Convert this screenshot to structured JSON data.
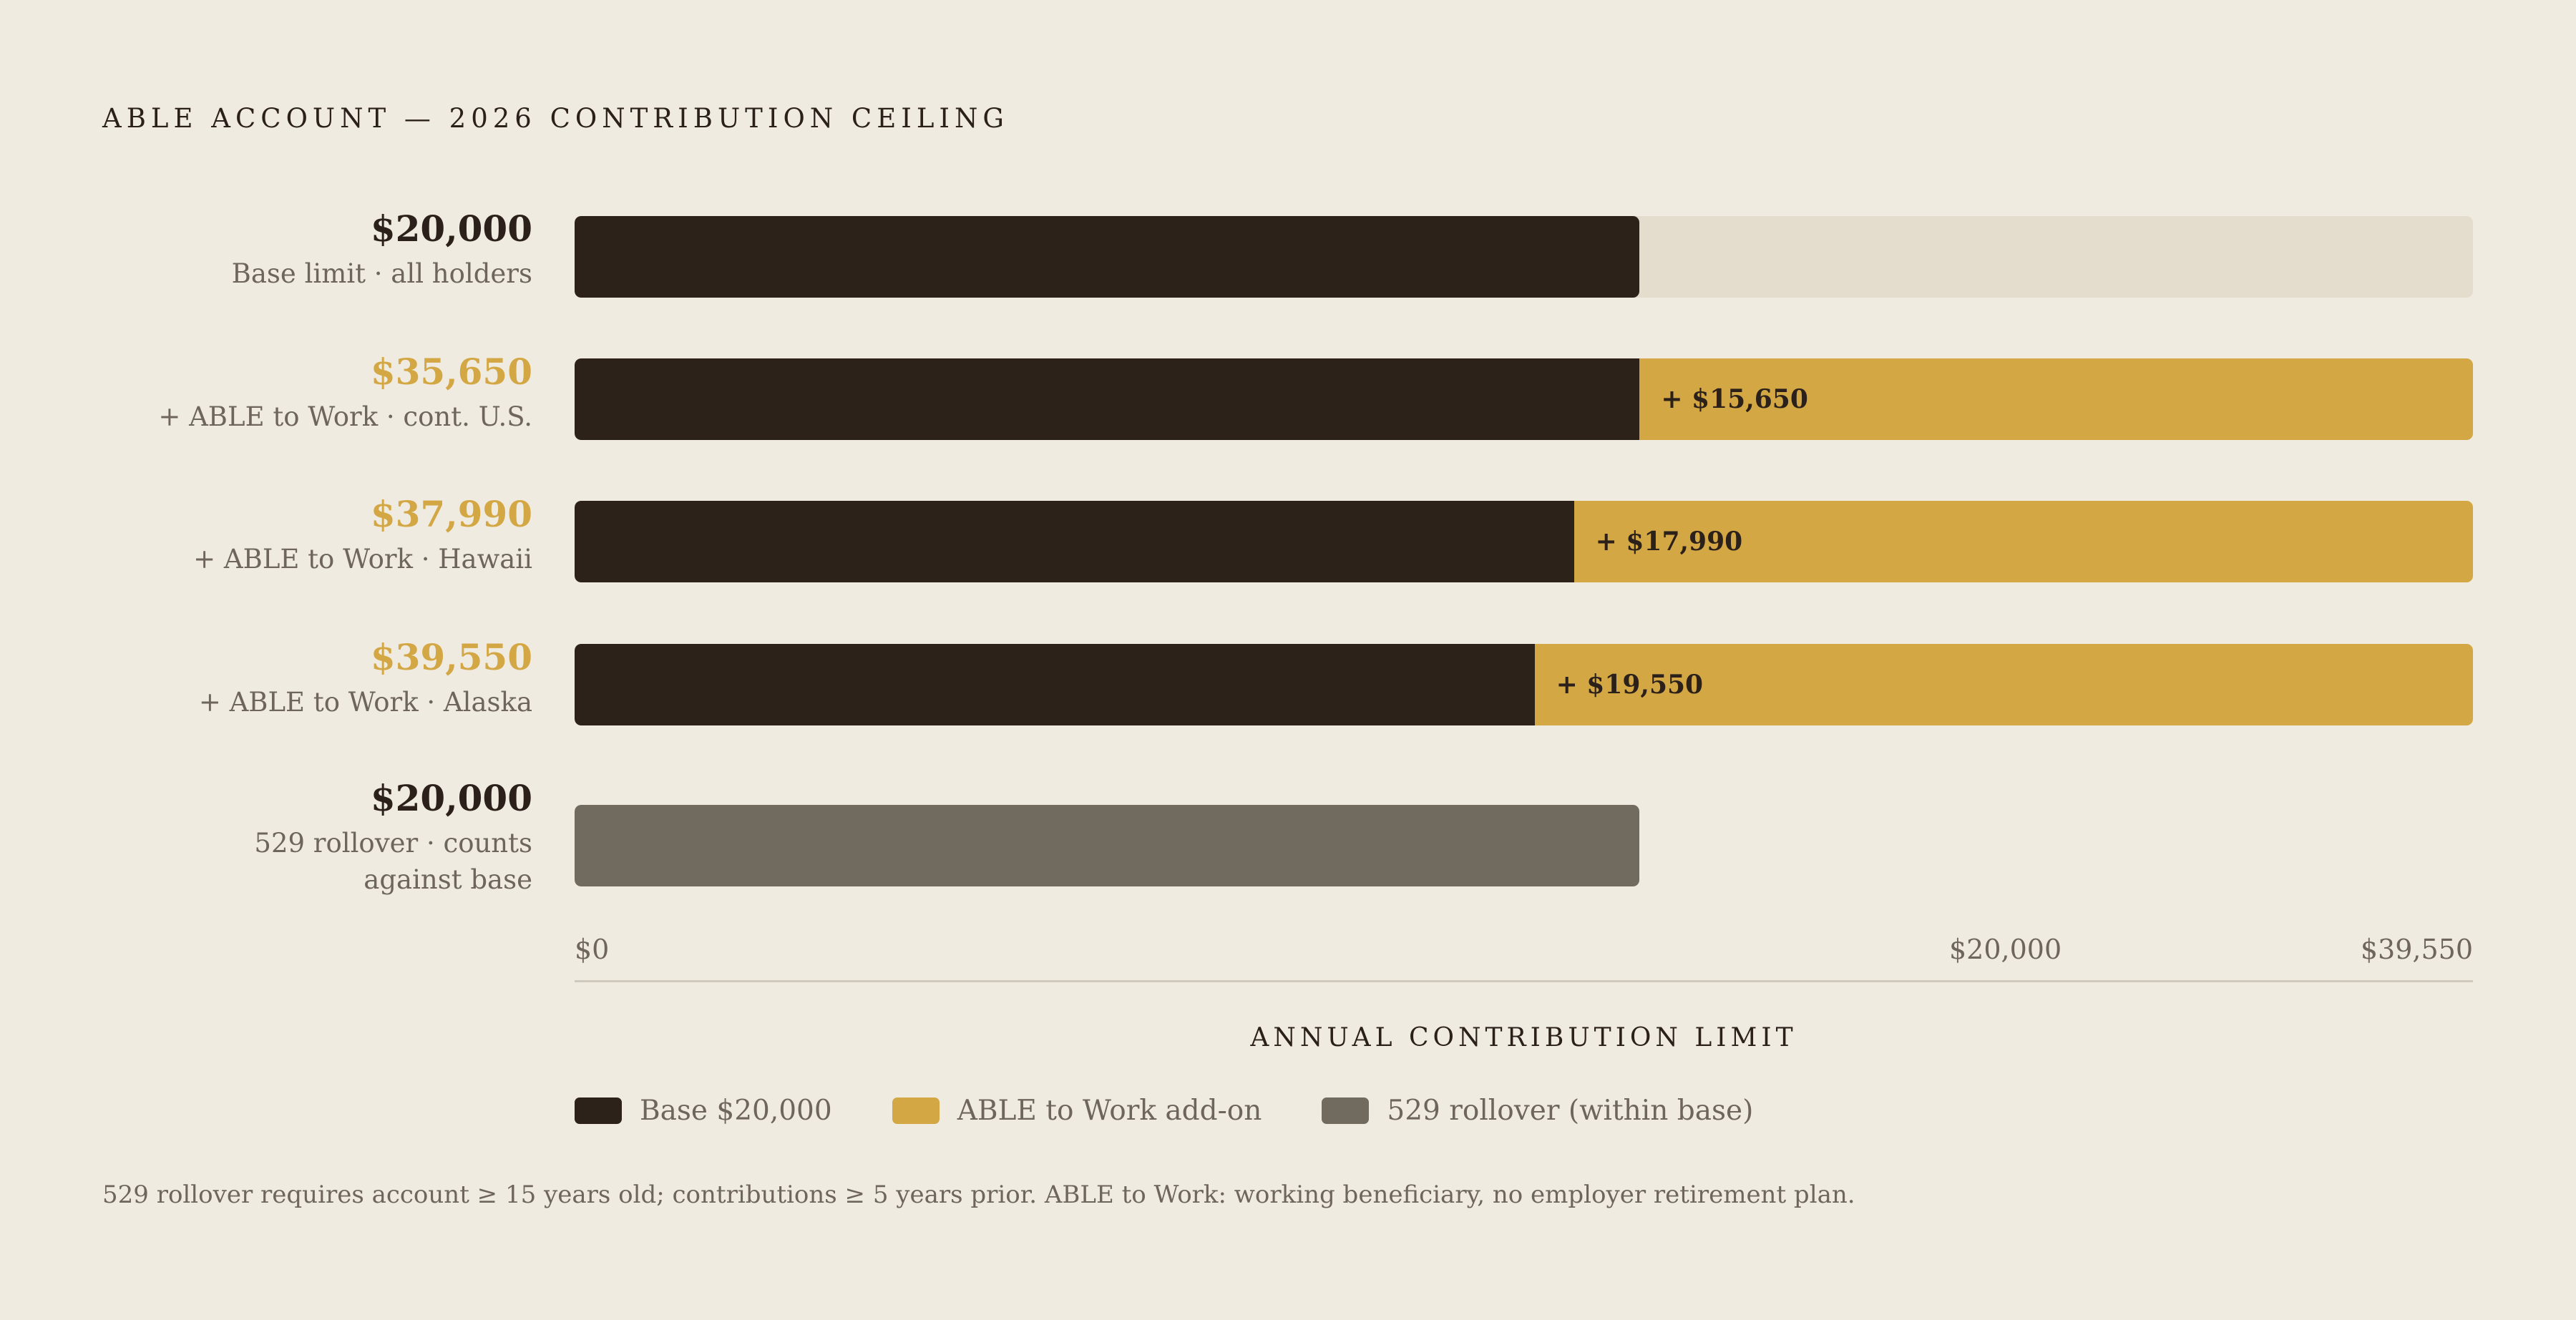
{
  "title": "ABLE ACCOUNT — 2026 CONTRIBUTION CEILING",
  "colors": {
    "base": "#2c221a",
    "add_on": "#d4a745",
    "rollover": "#716a5f",
    "track": "#e4dccd",
    "accent_text": "#d4a745",
    "dark_text": "#2b211a"
  },
  "chart_data": {
    "type": "bar",
    "orientation": "horizontal",
    "stacked": true,
    "xlabel": "ANNUAL CONTRIBUTION LIMIT",
    "xlim": [
      0,
      39550
    ],
    "x_ticks": [
      "$0",
      "$20,000",
      "$39,550"
    ],
    "rows": [
      {
        "total_label": "$20,000",
        "sub_label": "Base limit · all holders",
        "base": 20000,
        "add_on": 0,
        "rollover": 0,
        "add_label": "",
        "highlight": false
      },
      {
        "total_label": "$35,650",
        "sub_label": "+ ABLE to Work · cont. U.S.",
        "base": 20000,
        "add_on": 15650,
        "rollover": 0,
        "add_label": "+ $15,650",
        "highlight": true
      },
      {
        "total_label": "$37,990",
        "sub_label": "+ ABLE to Work · Hawaii",
        "base": 20000,
        "add_on": 17990,
        "rollover": 0,
        "add_label": "+ $17,990",
        "highlight": true
      },
      {
        "total_label": "$39,550",
        "sub_label": "+ ABLE to Work · Alaska",
        "base": 20000,
        "add_on": 19550,
        "rollover": 0,
        "add_label": "+ $19,550",
        "highlight": true
      },
      {
        "total_label": "$20,000",
        "sub_label": "529 rollover · counts against base",
        "base": 0,
        "add_on": 0,
        "rollover": 20000,
        "add_label": "",
        "highlight": false
      }
    ],
    "legend": [
      {
        "label": "Base $20,000",
        "color": "#2c221a"
      },
      {
        "label": "ABLE to Work add-on",
        "color": "#d4a745"
      },
      {
        "label": "529 rollover (within base)",
        "color": "#716a5f"
      }
    ]
  },
  "footnote": "529 rollover requires account ≥ 15 years old; contributions ≥ 5 years prior. ABLE to Work: working beneficiary, no employer retirement plan."
}
